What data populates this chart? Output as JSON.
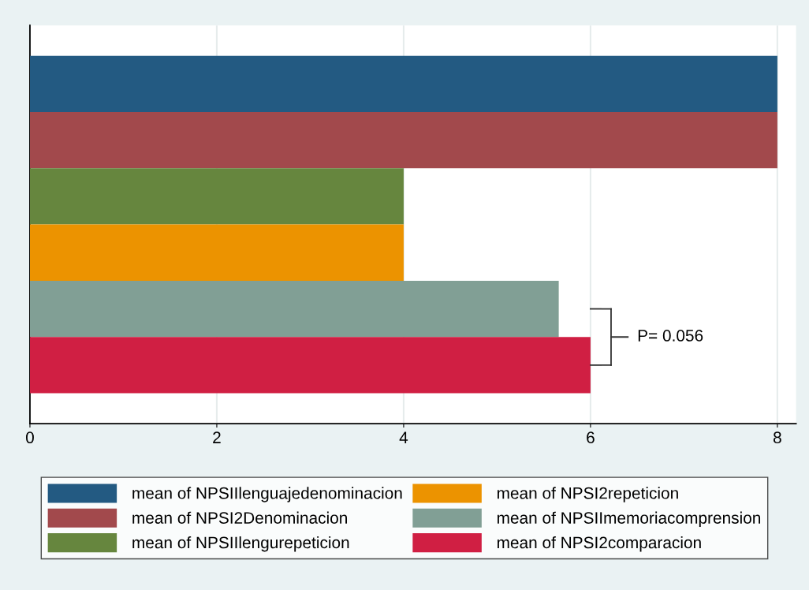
{
  "chart_data": {
    "type": "bar",
    "orientation": "horizontal",
    "categories": [
      null
    ],
    "series": [
      {
        "name": "mean of NPSIIlenguajedenominacion",
        "color": "#235a82",
        "values": [
          8
        ]
      },
      {
        "name": "mean of NPSI2Denominacion",
        "color": "#a2494c",
        "values": [
          8
        ]
      },
      {
        "name": "mean of NPSIIlengurepeticion",
        "color": "#66863e",
        "values": [
          4
        ]
      },
      {
        "name": "mean of NPSI2repeticion",
        "color": "#ec9300",
        "values": [
          4
        ]
      },
      {
        "name": "mean of NPSIImemoriacomprension",
        "color": "#819f95",
        "values": [
          5.66
        ]
      },
      {
        "name": "mean of NPSI2comparacion",
        "color": "#d01f43",
        "values": [
          6
        ]
      }
    ],
    "xlim": [
      0,
      8.2
    ],
    "xticks": [
      0,
      2,
      4,
      6,
      8
    ],
    "grid": "x",
    "legend": "bottom",
    "annotations": [
      "P= 0.056"
    ]
  }
}
